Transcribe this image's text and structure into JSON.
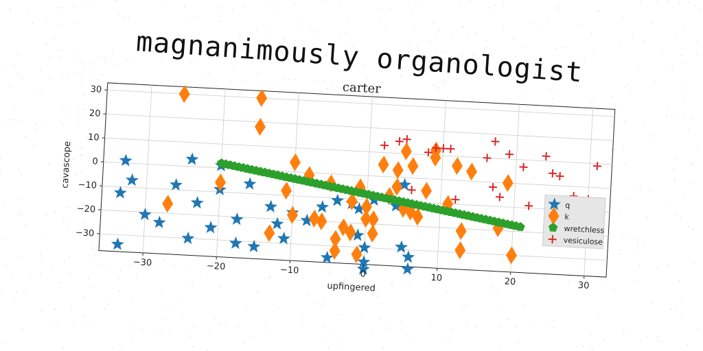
{
  "banner_title": "magnanimously organologist",
  "chart_data": {
    "type": "scatter",
    "title": "carter",
    "xlabel": "upfingered",
    "ylabel": "cavascope",
    "xlim": [
      -36,
      33
    ],
    "ylim": [
      -37,
      33
    ],
    "xticks": [
      -30,
      -20,
      -10,
      0,
      10,
      20,
      30
    ],
    "yticks": [
      -30,
      -20,
      -10,
      0,
      10,
      20,
      30
    ],
    "grid": true,
    "legend_position": "center-right",
    "series": [
      {
        "name": "q",
        "marker": "star",
        "color": "#1f77b4",
        "points": [
          [
            -33.5,
            -34
          ],
          [
            -33.5,
            -12.5
          ],
          [
            -33,
            1
          ],
          [
            -32,
            -7
          ],
          [
            -30,
            -21
          ],
          [
            -28,
            -24
          ],
          [
            -26,
            -8
          ],
          [
            -24,
            -30
          ],
          [
            -24,
            3
          ],
          [
            -23,
            -15
          ],
          [
            -21,
            -25
          ],
          [
            -20,
            -9
          ],
          [
            -20,
            1
          ],
          [
            -17.5,
            -31
          ],
          [
            -17.5,
            -21
          ],
          [
            -16,
            -6
          ],
          [
            -15,
            -32
          ],
          [
            -13,
            -15
          ],
          [
            -12,
            -22
          ],
          [
            -11,
            -28
          ],
          [
            -10,
            -17
          ],
          [
            -8,
            -20
          ],
          [
            -6,
            -14
          ],
          [
            -5,
            -35
          ],
          [
            -4,
            -11
          ],
          [
            -2,
            -12
          ],
          [
            -1,
            -14
          ],
          [
            -1,
            -25
          ],
          [
            0,
            -30
          ],
          [
            0,
            -36
          ],
          [
            0,
            -39
          ],
          [
            1,
            -10
          ],
          [
            4,
            -12
          ],
          [
            5,
            -3
          ],
          [
            5,
            -29
          ],
          [
            6,
            -33
          ],
          [
            6,
            -38
          ]
        ]
      },
      {
        "name": "k",
        "marker": "diamond",
        "color": "#ff7f0e",
        "points": [
          [
            -25.5,
            30
          ],
          [
            -27,
            -16
          ],
          [
            -20,
            -6
          ],
          [
            -15,
            30
          ],
          [
            -15,
            18
          ],
          [
            -13,
            -26
          ],
          [
            -11,
            -8
          ],
          [
            -10,
            -18
          ],
          [
            -10,
            4
          ],
          [
            -8,
            -1
          ],
          [
            -7,
            -19
          ],
          [
            -6,
            -20
          ],
          [
            -5,
            -4
          ],
          [
            -4,
            -27
          ],
          [
            -4,
            -32
          ],
          [
            -3,
            -22
          ],
          [
            -2,
            -24
          ],
          [
            -2,
            -11
          ],
          [
            -1,
            -5
          ],
          [
            -1,
            -33
          ],
          [
            0,
            -13
          ],
          [
            0,
            -18
          ],
          [
            1,
            -18
          ],
          [
            1,
            -24
          ],
          [
            2,
            5
          ],
          [
            3,
            -8
          ],
          [
            4,
            3
          ],
          [
            4,
            -4
          ],
          [
            5,
            -13
          ],
          [
            5,
            11
          ],
          [
            6,
            -14
          ],
          [
            6,
            5
          ],
          [
            7,
            -16
          ],
          [
            8,
            -5
          ],
          [
            9,
            9
          ],
          [
            9,
            12
          ],
          [
            11,
            -10
          ],
          [
            12,
            6
          ],
          [
            13,
            -21
          ],
          [
            13,
            -29
          ],
          [
            14,
            4
          ],
          [
            18,
            -19
          ],
          [
            19,
            0
          ],
          [
            20,
            -30
          ]
        ]
      },
      {
        "name": "wretchless",
        "marker": "pentagon",
        "color": "#2ca02c",
        "line_from": [
          -20,
          2
        ],
        "line_to": [
          21,
          -18
        ],
        "count": 70
      },
      {
        "name": "vesiculose",
        "marker": "plus",
        "color": "#d62728",
        "points": [
          [
            2,
            13
          ],
          [
            4,
            15
          ],
          [
            5,
            16
          ],
          [
            6,
            -5
          ],
          [
            8,
            11
          ],
          [
            9,
            13
          ],
          [
            10,
            13
          ],
          [
            11,
            13
          ],
          [
            12,
            -8
          ],
          [
            16,
            10
          ],
          [
            17,
            -2
          ],
          [
            17,
            17
          ],
          [
            18,
            -6
          ],
          [
            19,
            12
          ],
          [
            21,
            7
          ],
          [
            22,
            -9
          ],
          [
            24,
            12
          ],
          [
            25,
            5
          ],
          [
            26,
            4
          ],
          [
            28,
            -4
          ],
          [
            30,
            -5
          ],
          [
            31,
            9
          ]
        ]
      }
    ]
  }
}
